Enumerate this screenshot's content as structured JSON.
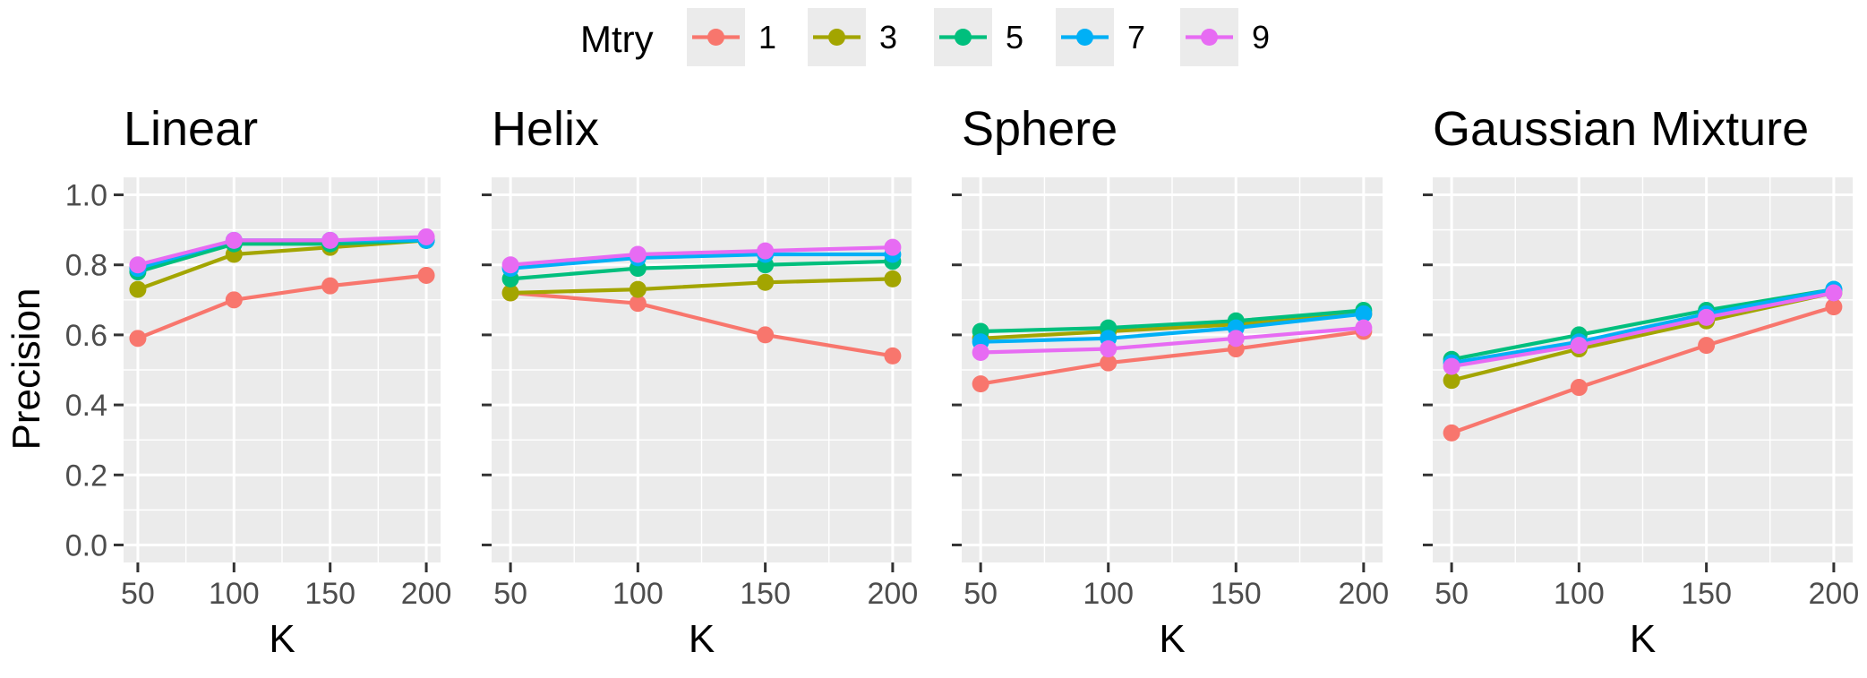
{
  "chart_data": {
    "type": "line",
    "legend": {
      "title": "Mtry",
      "placement": "top",
      "entries": [
        "1",
        "3",
        "5",
        "7",
        "9"
      ]
    },
    "colors": {
      "1": "#f8766d",
      "3": "#a3a500",
      "5": "#00bf7d",
      "7": "#00b0f6",
      "9": "#e76bf3"
    },
    "background": {
      "panel": "#ebebeb",
      "grid": "#ffffff"
    },
    "grid": true,
    "shared_y_axis": true,
    "xlabel": "K",
    "ylabel": "Precision",
    "x": [
      50,
      100,
      150,
      200
    ],
    "xticks": [
      "50",
      "100",
      "150",
      "200"
    ],
    "ylim": [
      -0.05,
      1.05
    ],
    "yticks": [
      "0.0",
      "0.2",
      "0.4",
      "0.6",
      "0.8",
      "1.0"
    ],
    "panels": [
      {
        "title": "Linear",
        "series": [
          {
            "name": "1",
            "values": [
              0.59,
              0.7,
              0.74,
              0.77
            ]
          },
          {
            "name": "3",
            "values": [
              0.73,
              0.83,
              0.85,
              0.87
            ]
          },
          {
            "name": "5",
            "values": [
              0.78,
              0.86,
              0.86,
              0.87
            ]
          },
          {
            "name": "7",
            "values": [
              0.79,
              0.87,
              0.87,
              0.87
            ]
          },
          {
            "name": "9",
            "values": [
              0.8,
              0.87,
              0.87,
              0.88
            ]
          }
        ]
      },
      {
        "title": "Helix",
        "series": [
          {
            "name": "1",
            "values": [
              0.72,
              0.69,
              0.6,
              0.54
            ]
          },
          {
            "name": "3",
            "values": [
              0.72,
              0.73,
              0.75,
              0.76
            ]
          },
          {
            "name": "5",
            "values": [
              0.76,
              0.79,
              0.8,
              0.81
            ]
          },
          {
            "name": "7",
            "values": [
              0.79,
              0.82,
              0.83,
              0.83
            ]
          },
          {
            "name": "9",
            "values": [
              0.8,
              0.83,
              0.84,
              0.85
            ]
          }
        ]
      },
      {
        "title": "Sphere",
        "series": [
          {
            "name": "1",
            "values": [
              0.46,
              0.52,
              0.56,
              0.61
            ]
          },
          {
            "name": "3",
            "values": [
              0.59,
              0.61,
              0.63,
              0.66
            ]
          },
          {
            "name": "5",
            "values": [
              0.61,
              0.62,
              0.64,
              0.67
            ]
          },
          {
            "name": "7",
            "values": [
              0.58,
              0.59,
              0.62,
              0.66
            ]
          },
          {
            "name": "9",
            "values": [
              0.55,
              0.56,
              0.59,
              0.62
            ]
          }
        ]
      },
      {
        "title": "Gaussian Mixture",
        "series": [
          {
            "name": "1",
            "values": [
              0.32,
              0.45,
              0.57,
              0.68
            ]
          },
          {
            "name": "3",
            "values": [
              0.47,
              0.56,
              0.64,
              0.72
            ]
          },
          {
            "name": "5",
            "values": [
              0.53,
              0.6,
              0.67,
              0.73
            ]
          },
          {
            "name": "7",
            "values": [
              0.52,
              0.58,
              0.66,
              0.73
            ]
          },
          {
            "name": "9",
            "values": [
              0.51,
              0.57,
              0.65,
              0.72
            ]
          }
        ]
      }
    ]
  }
}
